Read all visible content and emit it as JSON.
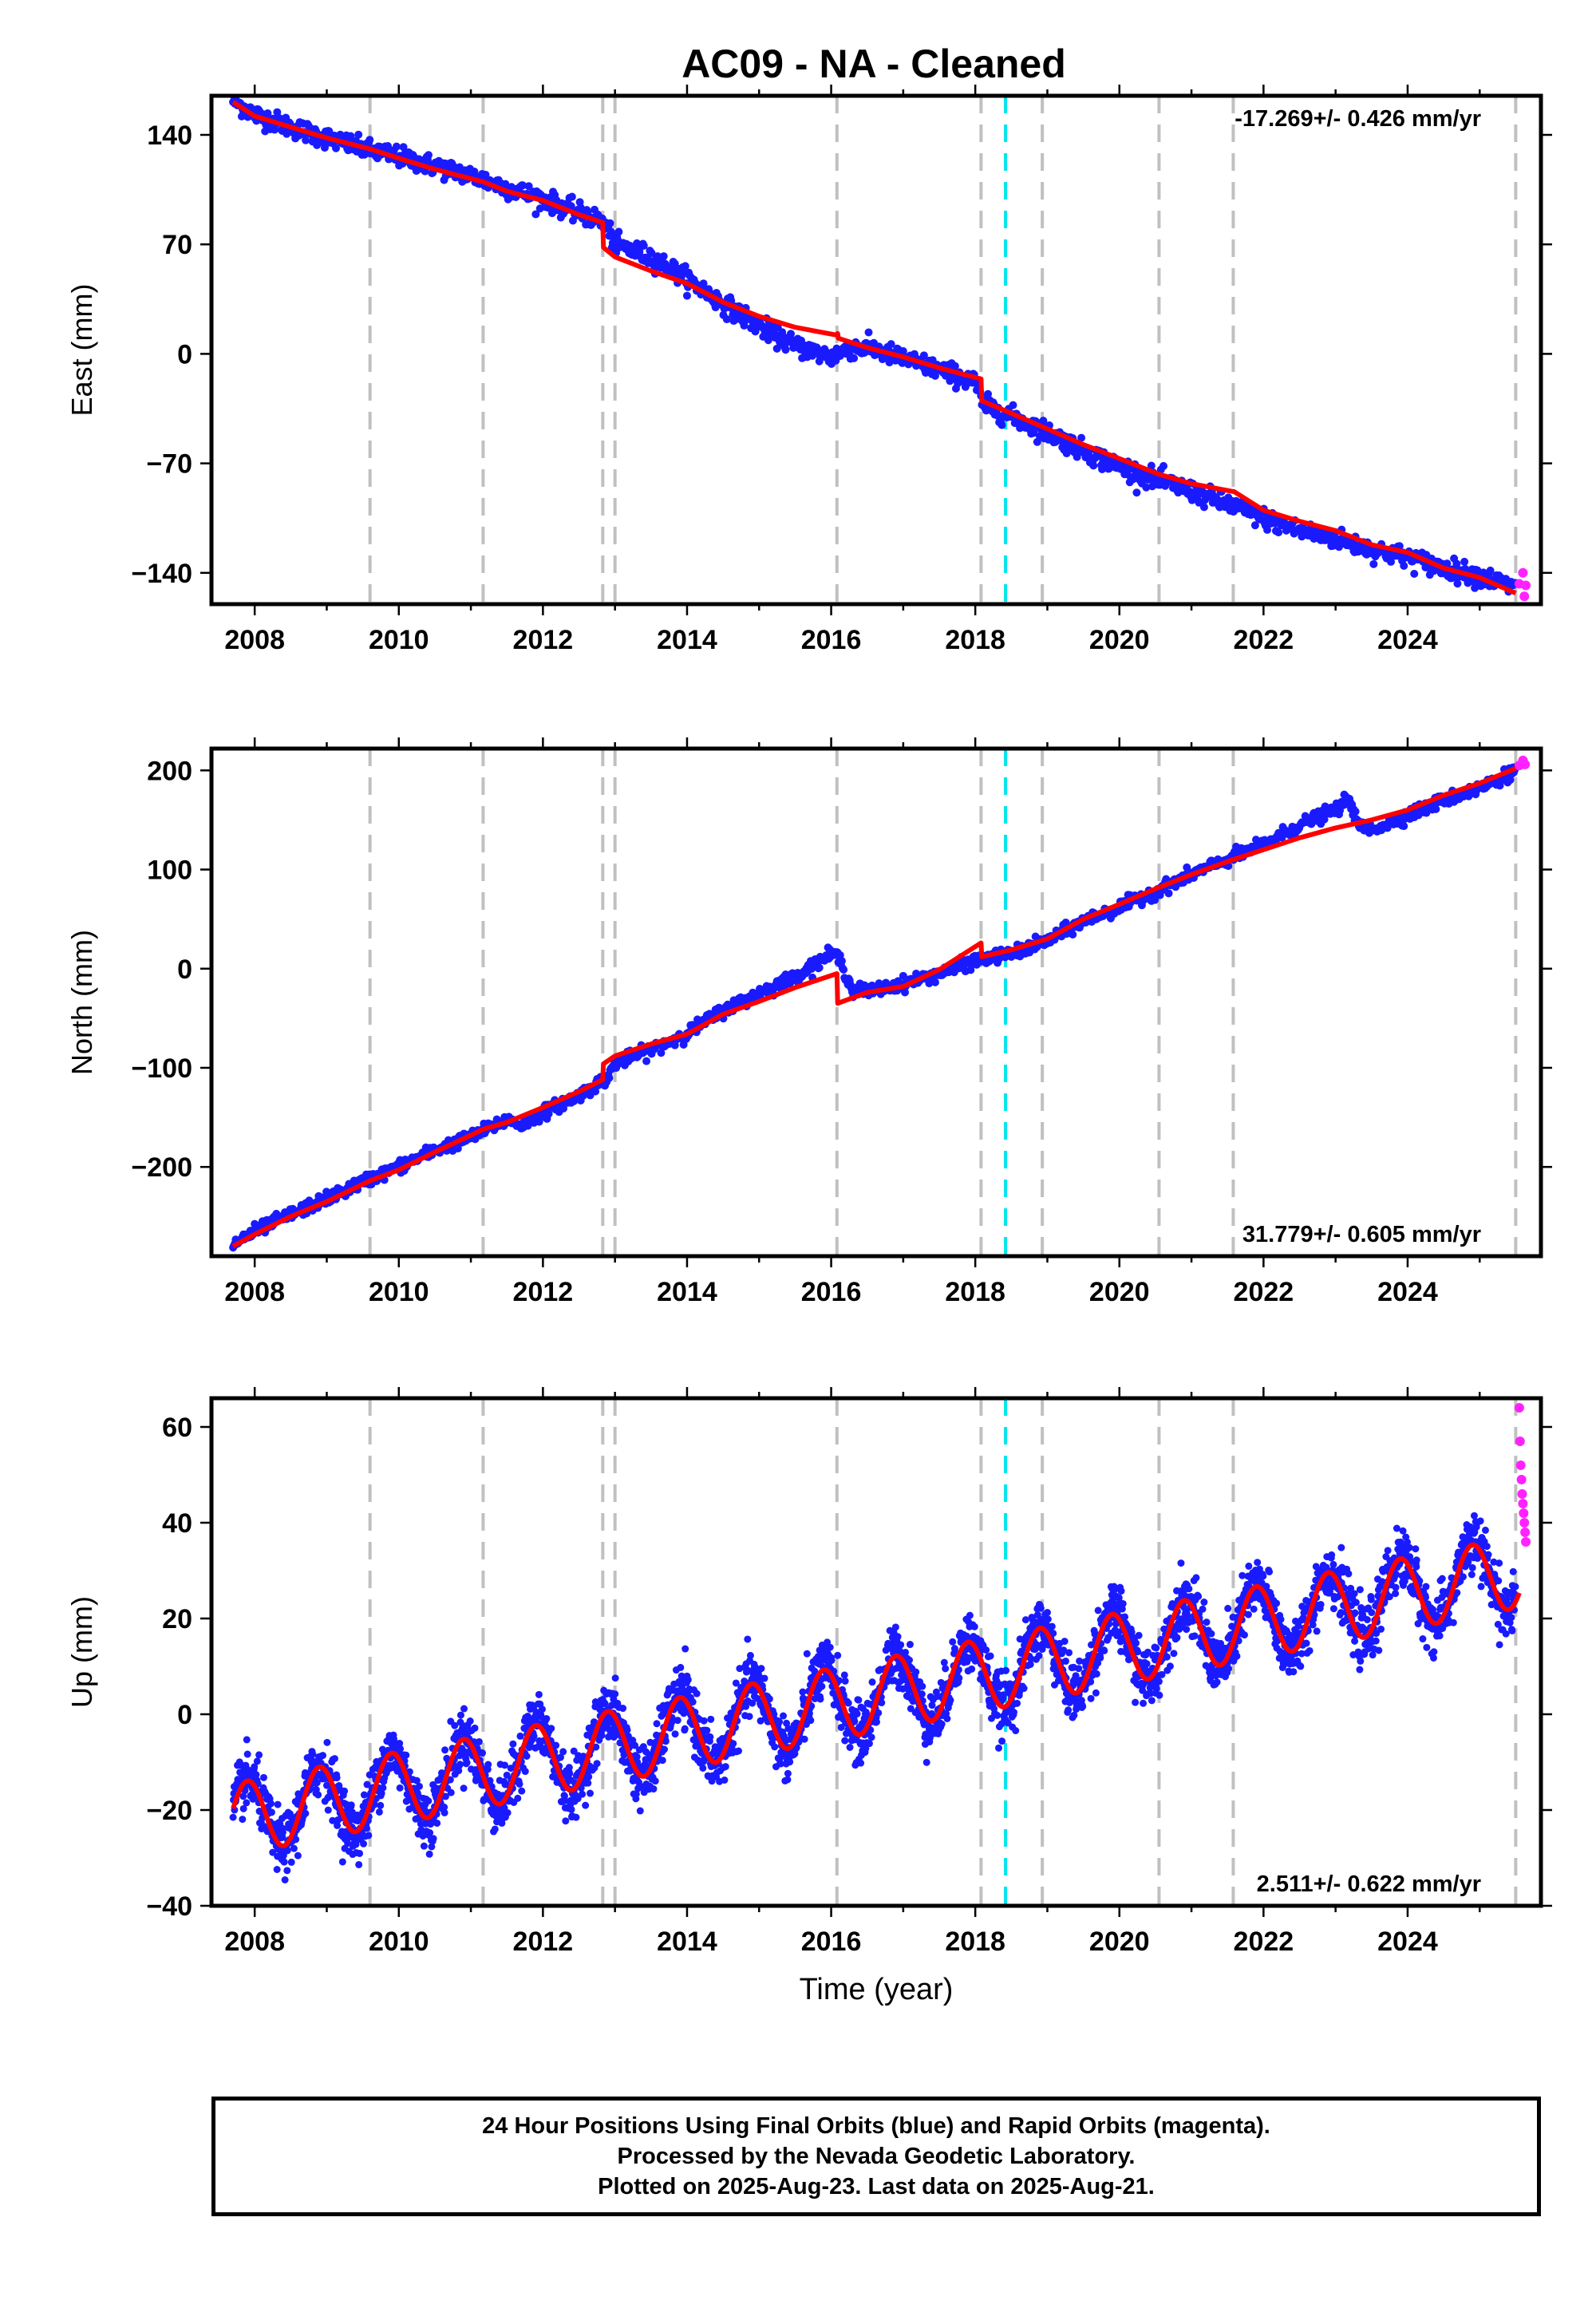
{
  "title": "AC09  - NA - Cleaned",
  "colors": {
    "final_orbits": "#1a1aff",
    "rapid_orbits": "#ff22ff",
    "model": "#ff0000",
    "event_line": "#c0c0c0",
    "antenna_line": "#00e5ee"
  },
  "event_lines": [
    2009.6,
    2011.17,
    2012.83,
    2013.0,
    2016.08,
    2018.08,
    2018.93,
    2020.55,
    2021.58,
    2025.5
  ],
  "antenna_change": 2018.42,
  "footer": {
    "line1": "24 Hour Positions Using Final Orbits (blue) and Rapid Orbits (magenta).",
    "line2": "Processed by the Nevada Geodetic Laboratory.",
    "line3": "Plotted on 2025-Aug-23. Last data on 2025-Aug-21."
  },
  "chart_data": [
    {
      "type": "scatter",
      "component": "east",
      "ylabel": "East (mm)",
      "xlabel": "",
      "xlim": [
        2007.4,
        2025.85
      ],
      "ylim": [
        -160,
        165
      ],
      "xticks": [
        "2008",
        "2010",
        "2012",
        "2014",
        "2016",
        "2018",
        "2020",
        "2022",
        "2024"
      ],
      "yticks": [
        "140",
        "70",
        "0",
        "−70",
        "−140"
      ],
      "ytick_values": [
        140,
        70,
        0,
        -70,
        -140
      ],
      "rate_text": "-17.269+/- 0.426 mm/yr",
      "rate_position": "top-right",
      "series": [
        {
          "kind": "observations",
          "color": "blue",
          "points": [
            [
              2007.7,
              162
            ],
            [
              2008.0,
              153
            ],
            [
              2008.5,
              145
            ],
            [
              2009.0,
              138
            ],
            [
              2009.6,
              130
            ],
            [
              2010.0,
              126
            ],
            [
              2010.5,
              120
            ],
            [
              2011.0,
              114
            ],
            [
              2011.5,
              106
            ],
            [
              2012.0,
              99
            ],
            [
              2012.5,
              90
            ],
            [
              2012.8,
              85
            ],
            [
              2012.9,
              80
            ],
            [
              2013.0,
              70
            ],
            [
              2013.5,
              62
            ],
            [
              2014.0,
              48
            ],
            [
              2014.5,
              32
            ],
            [
              2015.0,
              18
            ],
            [
              2015.5,
              5
            ],
            [
              2016.0,
              -2
            ],
            [
              2016.3,
              4
            ],
            [
              2016.6,
              3
            ],
            [
              2017.0,
              -3
            ],
            [
              2017.5,
              -10
            ],
            [
              2018.0,
              -18
            ],
            [
              2018.1,
              -32
            ],
            [
              2018.5,
              -40
            ],
            [
              2019.0,
              -50
            ],
            [
              2019.5,
              -62
            ],
            [
              2020.0,
              -72
            ],
            [
              2020.5,
              -80
            ],
            [
              2021.0,
              -88
            ],
            [
              2021.5,
              -96
            ],
            [
              2022.0,
              -105
            ],
            [
              2022.5,
              -113
            ],
            [
              2023.0,
              -118
            ],
            [
              2023.5,
              -125
            ],
            [
              2024.0,
              -130
            ],
            [
              2024.5,
              -137
            ],
            [
              2025.0,
              -142
            ],
            [
              2025.5,
              -150
            ]
          ]
        },
        {
          "kind": "rapid",
          "color": "magenta",
          "points": [
            [
              2025.55,
              -147
            ],
            [
              2025.6,
              -140
            ],
            [
              2025.62,
              -155
            ],
            [
              2025.64,
              -148
            ]
          ]
        },
        {
          "kind": "model",
          "color": "red",
          "points": [
            [
              2007.7,
              161
            ],
            [
              2008.0,
              152
            ],
            [
              2008.5,
              145
            ],
            [
              2009.0,
              138
            ],
            [
              2009.6,
              131
            ],
            [
              2010.0,
              125
            ],
            [
              2010.5,
              118
            ],
            [
              2011.0,
              112
            ],
            [
              2011.17,
              110
            ],
            [
              2011.5,
              104
            ],
            [
              2012.0,
              98
            ],
            [
              2012.5,
              89
            ],
            [
              2012.83,
              84
            ],
            [
              2012.84,
              68
            ],
            [
              2013.0,
              62
            ],
            [
              2013.5,
              53
            ],
            [
              2014.0,
              45
            ],
            [
              2014.5,
              33
            ],
            [
              2015.0,
              24
            ],
            [
              2015.5,
              17
            ],
            [
              2016.08,
              12
            ],
            [
              2016.09,
              13
            ],
            [
              2016.1,
              10
            ],
            [
              2016.5,
              4
            ],
            [
              2017.0,
              -2
            ],
            [
              2017.5,
              -9
            ],
            [
              2018.08,
              -16
            ],
            [
              2018.09,
              -30
            ],
            [
              2018.5,
              -38
            ],
            [
              2019.0,
              -48
            ],
            [
              2019.5,
              -58
            ],
            [
              2020.0,
              -67
            ],
            [
              2020.55,
              -77
            ],
            [
              2021.0,
              -83
            ],
            [
              2021.58,
              -88
            ],
            [
              2021.59,
              -88
            ],
            [
              2022.0,
              -100
            ],
            [
              2022.5,
              -107
            ],
            [
              2023.0,
              -113
            ],
            [
              2023.5,
              -122
            ],
            [
              2024.0,
              -127
            ],
            [
              2024.5,
              -137
            ],
            [
              2025.0,
              -143
            ],
            [
              2025.5,
              -153
            ]
          ]
        }
      ]
    },
    {
      "type": "scatter",
      "component": "north",
      "ylabel": "North (mm)",
      "xlabel": "",
      "xlim": [
        2007.4,
        2025.85
      ],
      "ylim": [
        -290,
        222
      ],
      "xticks": [
        "2008",
        "2010",
        "2012",
        "2014",
        "2016",
        "2018",
        "2020",
        "2022",
        "2024"
      ],
      "yticks": [
        "200",
        "100",
        "0",
        "−100",
        "−200"
      ],
      "ytick_values": [
        200,
        100,
        0,
        -100,
        -200
      ],
      "rate_text": "31.779+/- 0.605 mm/yr",
      "rate_position": "bottom-right",
      "series": [
        {
          "kind": "observations",
          "color": "blue",
          "points": [
            [
              2007.7,
              -278
            ],
            [
              2008.0,
              -265
            ],
            [
              2008.5,
              -248
            ],
            [
              2009.0,
              -232
            ],
            [
              2009.6,
              -212
            ],
            [
              2010.0,
              -200
            ],
            [
              2010.5,
              -183
            ],
            [
              2011.0,
              -170
            ],
            [
              2011.5,
              -152
            ],
            [
              2011.7,
              -158
            ],
            [
              2012.0,
              -145
            ],
            [
              2012.5,
              -128
            ],
            [
              2012.9,
              -110
            ],
            [
              2013.0,
              -95
            ],
            [
              2013.5,
              -82
            ],
            [
              2014.0,
              -65
            ],
            [
              2014.5,
              -42
            ],
            [
              2015.0,
              -25
            ],
            [
              2015.5,
              -8
            ],
            [
              2016.0,
              15
            ],
            [
              2016.1,
              12
            ],
            [
              2016.3,
              -22
            ],
            [
              2016.6,
              -22
            ],
            [
              2017.0,
              -15
            ],
            [
              2017.5,
              -5
            ],
            [
              2018.0,
              8
            ],
            [
              2018.5,
              15
            ],
            [
              2019.0,
              28
            ],
            [
              2019.5,
              48
            ],
            [
              2020.0,
              62
            ],
            [
              2020.5,
              78
            ],
            [
              2021.0,
              95
            ],
            [
              2021.5,
              110
            ],
            [
              2022.0,
              125
            ],
            [
              2022.5,
              145
            ],
            [
              2023.0,
              160
            ],
            [
              2023.2,
              172
            ],
            [
              2023.3,
              145
            ],
            [
              2023.5,
              140
            ],
            [
              2024.0,
              155
            ],
            [
              2024.5,
              170
            ],
            [
              2025.0,
              182
            ],
            [
              2025.5,
              200
            ]
          ]
        },
        {
          "kind": "rapid",
          "color": "magenta",
          "points": [
            [
              2025.55,
              205
            ],
            [
              2025.6,
              210
            ],
            [
              2025.63,
              206
            ]
          ]
        },
        {
          "kind": "model",
          "color": "red",
          "points": [
            [
              2007.7,
              -280
            ],
            [
              2008.0,
              -268
            ],
            [
              2008.5,
              -250
            ],
            [
              2009.0,
              -235
            ],
            [
              2009.6,
              -214
            ],
            [
              2010.0,
              -203
            ],
            [
              2010.5,
              -185
            ],
            [
              2011.0,
              -168
            ],
            [
              2011.17,
              -162
            ],
            [
              2011.5,
              -155
            ],
            [
              2012.0,
              -140
            ],
            [
              2012.5,
              -124
            ],
            [
              2012.83,
              -112
            ],
            [
              2012.84,
              -96
            ],
            [
              2013.0,
              -88
            ],
            [
              2013.5,
              -76
            ],
            [
              2014.0,
              -66
            ],
            [
              2014.5,
              -46
            ],
            [
              2015.0,
              -33
            ],
            [
              2015.5,
              -19
            ],
            [
              2016.08,
              -5
            ],
            [
              2016.09,
              -35
            ],
            [
              2016.5,
              -24
            ],
            [
              2017.0,
              -18
            ],
            [
              2017.5,
              -1
            ],
            [
              2018.08,
              26
            ],
            [
              2018.09,
              12
            ],
            [
              2018.5,
              19
            ],
            [
              2019.0,
              30
            ],
            [
              2019.5,
              50
            ],
            [
              2020.0,
              65
            ],
            [
              2020.55,
              82
            ],
            [
              2021.0,
              95
            ],
            [
              2021.58,
              110
            ],
            [
              2022.0,
              120
            ],
            [
              2022.5,
              132
            ],
            [
              2023.0,
              142
            ],
            [
              2023.5,
              150
            ],
            [
              2024.0,
              160
            ],
            [
              2024.5,
              175
            ],
            [
              2025.0,
              187
            ],
            [
              2025.5,
              202
            ]
          ]
        }
      ]
    },
    {
      "type": "scatter",
      "component": "up",
      "ylabel": "Up (mm)",
      "xlabel": "Time (year)",
      "xlim": [
        2007.4,
        2025.85
      ],
      "ylim": [
        -40,
        66
      ],
      "xticks": [
        "2008",
        "2010",
        "2012",
        "2014",
        "2016",
        "2018",
        "2020",
        "2022",
        "2024"
      ],
      "yticks": [
        "60",
        "40",
        "20",
        "0",
        "−20",
        "−40"
      ],
      "ytick_values": [
        60,
        40,
        20,
        0,
        -20,
        -40
      ],
      "rate_text": "2.511+/- 0.622 mm/yr",
      "rate_position": "bottom-right",
      "series": [
        {
          "kind": "observations",
          "color": "blue",
          "seasonal": {
            "start": 2007.7,
            "end": 2025.5,
            "trend_start": -22,
            "trend_rate": 2.9,
            "amplitude": 7.5,
            "phase_year": 2007.9,
            "scatter": 5.5
          }
        },
        {
          "kind": "rapid",
          "color": "magenta",
          "points": [
            [
              2025.55,
              64
            ],
            [
              2025.56,
              57
            ],
            [
              2025.57,
              52
            ],
            [
              2025.58,
              49
            ],
            [
              2025.59,
              46
            ],
            [
              2025.6,
              44
            ],
            [
              2025.61,
              42
            ],
            [
              2025.62,
              40
            ],
            [
              2025.63,
              38
            ],
            [
              2025.64,
              36
            ]
          ]
        },
        {
          "kind": "model",
          "color": "red",
          "seasonal": {
            "start": 2007.7,
            "end": 2025.55,
            "trend_start": -22,
            "trend_rate": 2.9,
            "amplitude": 7.5,
            "phase_year": 2007.9
          }
        }
      ]
    }
  ]
}
